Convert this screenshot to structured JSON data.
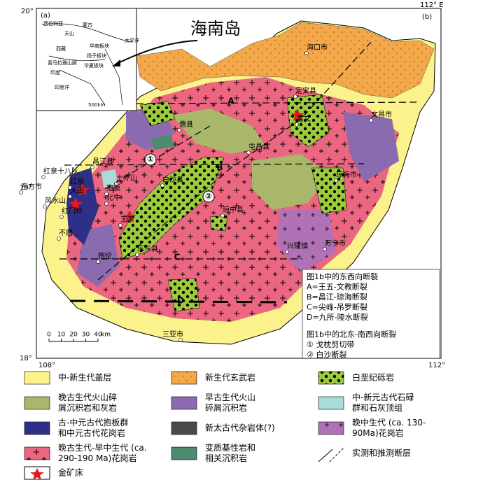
{
  "map": {
    "corner_labels": [
      "20°",
      "112° E",
      "19°",
      "18°",
      "108°",
      "112°"
    ],
    "panel_labels": [
      "(a)",
      "(b)"
    ],
    "island_label": "海南岛",
    "inset_labels": [
      "西伯利亚",
      "蒙古",
      "天山",
      "西藏",
      "华南板块",
      "喜马拉雅山脉",
      "扬子板块",
      "华夏板块",
      "太平洋",
      "印度",
      "印度洋",
      "500km"
    ],
    "places": [
      "海口市",
      "定安县",
      "文昌市",
      "富文",
      "儋县",
      "屯昌县",
      "昌江县",
      "红泉十八队",
      "土外山",
      "白沙县",
      "琼海市",
      "东方市",
      "红泉",
      "大田",
      "抱板",
      "北牛",
      "风水山",
      "红门岭",
      "琼中县",
      "王下",
      "不磨",
      "乐东县",
      "兴隆镇",
      "万宁市",
      "抱伦",
      "三亚市"
    ],
    "fault_marks": [
      "A",
      "B",
      "C",
      "D",
      "①",
      "②"
    ],
    "fault_legend": [
      "图1b中的东西向断裂",
      "A=王五-文教断裂",
      "B=昌江-琼海断裂",
      "C=尖峰-吊罗断裂",
      "D=九所-陵水断裂",
      "图1b中的北东-南西向断裂",
      "① 戈枕剪切带",
      "② 白沙断裂"
    ],
    "scale": {
      "ticks": [
        0,
        10,
        20,
        30,
        40
      ],
      "unit": "km"
    }
  },
  "legend": [
    [
      "中-新生代盖层"
    ],
    [
      "新生代玄武岩"
    ],
    [
      "白垩纪砾岩"
    ],
    [
      "晚古生代火山碎",
      "屑沉积岩和灰岩"
    ],
    [
      "早古生代火山",
      "碎屑沉积岩"
    ],
    [
      "中-新元古代石碌",
      "群和石灰顶组"
    ],
    [
      "古-中元古代抱板群",
      "和中元古代花岗岩"
    ],
    [
      "新太古代杂岩体(?)"
    ],
    [
      "晚中生代 (ca. 130-",
      "90Ma)花岗岩"
    ],
    [
      "晚古生代-早中生代 (ca.",
      "290-190  Ma)花岗岩"
    ],
    [
      "变质基性岩和",
      "相关沉积岩"
    ],
    [
      "实测和推测断层"
    ],
    [
      "金矿床"
    ]
  ]
}
